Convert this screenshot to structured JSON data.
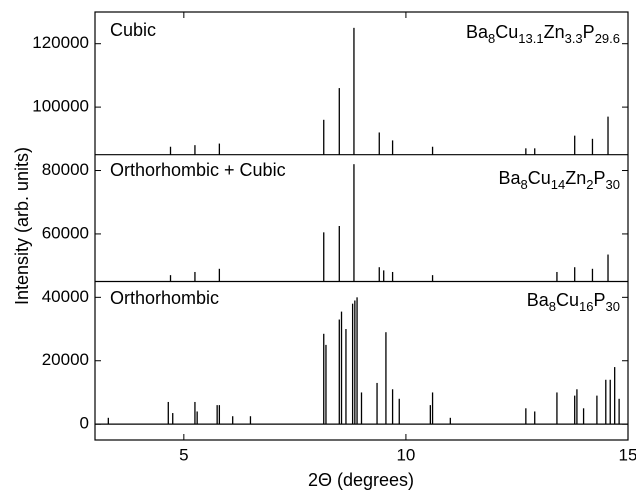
{
  "chart_data": {
    "type": "stick",
    "xlabel": "2Θ (degrees)",
    "ylabel": "Intensity (arb. units)",
    "xlim": [
      3,
      15
    ],
    "ylim": [
      -5000,
      130000
    ],
    "xticks": [
      5,
      10,
      15
    ],
    "yticks": [
      0,
      20000,
      40000,
      60000,
      80000,
      100000,
      120000
    ],
    "series": [
      {
        "name": "Cubic",
        "color": "#000000",
        "formula": [
          [
            "Ba",
            "8"
          ],
          [
            "Cu",
            "13.1"
          ],
          [
            "Zn",
            "3.3"
          ],
          [
            "P",
            "29.6"
          ]
        ],
        "baseline": 85000,
        "x": [
          4.7,
          5.25,
          5.8,
          8.15,
          8.5,
          8.83,
          9.4,
          9.7,
          10.6,
          12.7,
          12.9,
          13.8,
          14.2,
          14.55
        ],
        "values": [
          87500,
          88000,
          88500,
          96000,
          106000,
          125000,
          92000,
          89500,
          87500,
          87000,
          87000,
          91000,
          90000,
          97000
        ]
      },
      {
        "name": "Orthorhombic + Cubic",
        "color": "#000000",
        "formula": [
          [
            "Ba",
            "8"
          ],
          [
            "Cu",
            "14"
          ],
          [
            "Zn",
            "2"
          ],
          [
            "P",
            "30"
          ]
        ],
        "baseline": 45000,
        "x": [
          4.7,
          5.25,
          5.8,
          8.15,
          8.5,
          8.83,
          9.4,
          9.5,
          9.7,
          10.6,
          13.4,
          13.8,
          14.2,
          14.55
        ],
        "values": [
          47000,
          48000,
          49000,
          60500,
          62500,
          82000,
          49500,
          48500,
          48000,
          47000,
          48000,
          49500,
          49000,
          53500
        ]
      },
      {
        "name": "Orthorhombic",
        "color": "#000000",
        "formula": [
          [
            "Ba",
            "8"
          ],
          [
            "Cu",
            "16"
          ],
          [
            "P",
            "30"
          ]
        ],
        "baseline": 0,
        "x": [
          3.3,
          4.65,
          4.75,
          5.25,
          5.3,
          5.75,
          5.8,
          6.1,
          6.5,
          8.15,
          8.2,
          8.5,
          8.55,
          8.65,
          8.8,
          8.85,
          8.9,
          9.0,
          9.35,
          9.55,
          9.7,
          9.85,
          10.55,
          10.6,
          11.0,
          12.7,
          12.9,
          13.4,
          13.8,
          13.85,
          14.0,
          14.3,
          14.5,
          14.6,
          14.7,
          14.8
        ],
        "values": [
          2000,
          7000,
          3500,
          7000,
          4000,
          6000,
          6000,
          2500,
          2500,
          28500,
          25000,
          33000,
          35500,
          30000,
          38000,
          39000,
          40000,
          10000,
          13000,
          29000,
          11000,
          8000,
          6000,
          10000,
          2000,
          5000,
          4000,
          10000,
          9000,
          11000,
          5000,
          9000,
          14000,
          14000,
          18000,
          8000
        ]
      }
    ]
  }
}
